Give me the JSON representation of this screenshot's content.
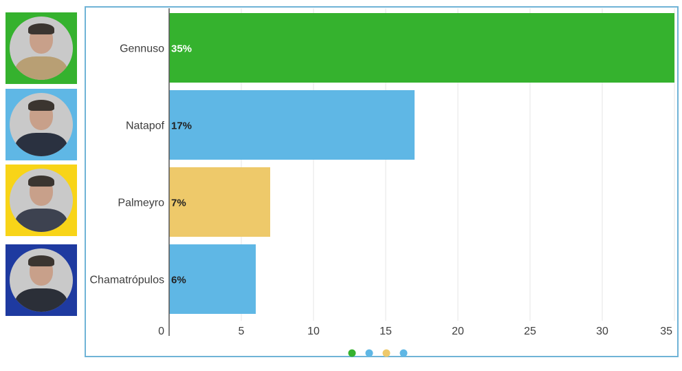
{
  "portraits": [
    {
      "name": "Gennuso",
      "frame_color": "#35b22e",
      "shirt_color": "#b89f74"
    },
    {
      "name": "Natapof",
      "frame_color": "#5fb7e5",
      "shirt_color": "#2a3140"
    },
    {
      "name": "Palmeyro",
      "frame_color": "#f8d418",
      "shirt_color": "#3d4250"
    },
    {
      "name": "Chamatrópulos",
      "frame_color": "#1e3aa0",
      "shirt_color": "#2b2f38"
    }
  ],
  "chart_data": {
    "type": "bar",
    "orientation": "horizontal",
    "categories": [
      "Gennuso",
      "Natapof",
      "Palmeyro",
      "Chamatrópulos"
    ],
    "values": [
      35,
      17,
      7,
      6
    ],
    "data_labels": [
      "35%",
      "17%",
      "7%",
      "6%"
    ],
    "colors": [
      "#35b22e",
      "#5fb7e5",
      "#eec96a",
      "#5fb7e5"
    ],
    "label_colors": [
      "#ffffff",
      "#222222",
      "#222222",
      "#222222"
    ],
    "xlim": [
      0,
      35
    ],
    "xticks": [
      "0",
      "5",
      "10",
      "15",
      "20",
      "25",
      "30",
      "35"
    ],
    "grid": true,
    "legend_dots": [
      "#35b22e",
      "#5fb7e5",
      "#eec96a",
      "#5fb7e5"
    ]
  }
}
